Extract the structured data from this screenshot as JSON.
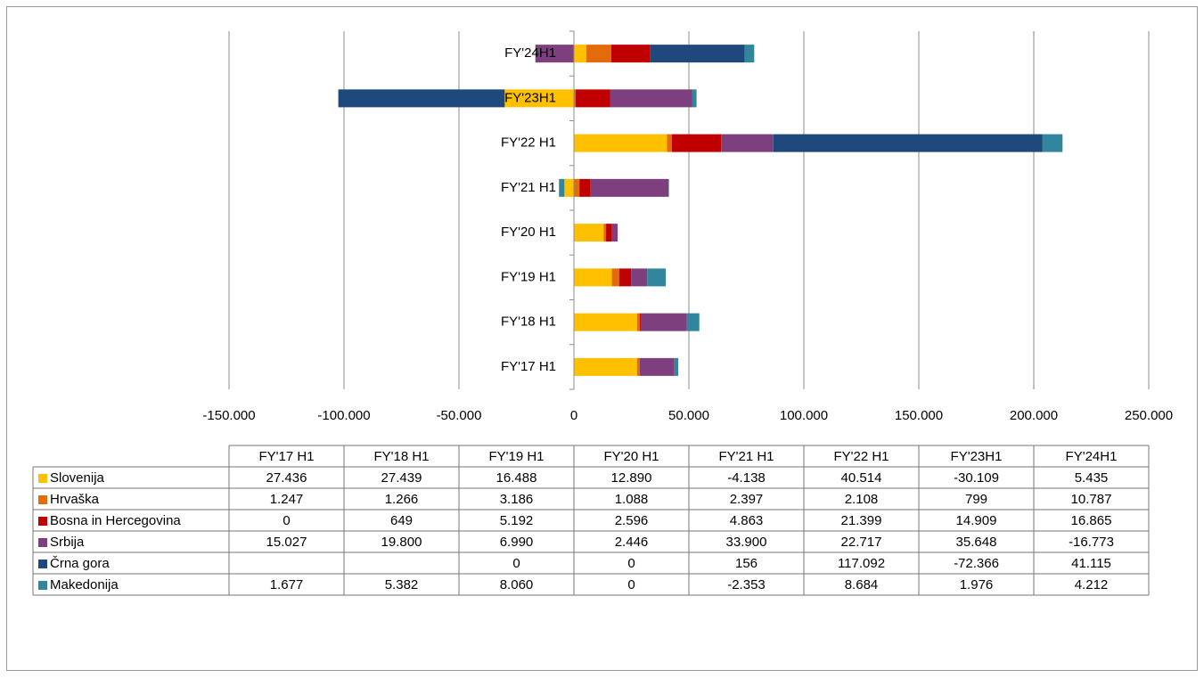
{
  "chart_data": {
    "type": "stacked-bar-horizontal",
    "categories": [
      "FY'17 H1",
      "FY'18 H1",
      "FY'19 H1",
      "FY'20 H1",
      "FY'21 H1",
      "FY'22 H1",
      "FY'23H1",
      "FY'24H1"
    ],
    "series": [
      {
        "name": "Slovenija",
        "color": "#FFC000",
        "values": [
          27436,
          27439,
          16488,
          12890,
          -4138,
          40514,
          -30109,
          5435
        ],
        "value_labels": [
          "27.436",
          "27.439",
          "16.488",
          "12.890",
          "-4.138",
          "40.514",
          "-30.109",
          "5.435"
        ]
      },
      {
        "name": "Hrvaška",
        "color": "#E36C0A",
        "values": [
          1247,
          1266,
          3186,
          1088,
          2397,
          2108,
          799,
          10787
        ],
        "value_labels": [
          "1.247",
          "1.266",
          "3.186",
          "1.088",
          "2.397",
          "2.108",
          "799",
          "10.787"
        ]
      },
      {
        "name": "Bosna in Hercegovina",
        "color": "#C00000",
        "values": [
          0,
          649,
          5192,
          2596,
          4863,
          21399,
          14909,
          16865
        ],
        "value_labels": [
          "0",
          "649",
          "5.192",
          "2.596",
          "4.863",
          "21.399",
          "14.909",
          "16.865"
        ]
      },
      {
        "name": "Srbija",
        "color": "#7E3F7E",
        "values": [
          15027,
          19800,
          6990,
          2446,
          33900,
          22717,
          35648,
          -16773
        ],
        "value_labels": [
          "15.027",
          "19.800",
          "6.990",
          "2.446",
          "33.900",
          "22.717",
          "35.648",
          "-16.773"
        ]
      },
      {
        "name": "Črna gora",
        "color": "#1F497D",
        "values": [
          null,
          null,
          0,
          0,
          156,
          117092,
          -72366,
          41115
        ],
        "value_labels": [
          null,
          null,
          "0",
          "0",
          "156",
          "117.092",
          "-72.366",
          "41.115"
        ]
      },
      {
        "name": "Makedonija",
        "color": "#31859C",
        "values": [
          1677,
          5382,
          8060,
          0,
          -2353,
          8684,
          1976,
          4212
        ],
        "value_labels": [
          "1.677",
          "5.382",
          "8.060",
          "0",
          "-2.353",
          "8.684",
          "1.976",
          "4.212"
        ]
      }
    ],
    "xlim": [
      -150000,
      250000
    ],
    "xticks": [
      {
        "value": -150000,
        "label": "-150.000"
      },
      {
        "value": -100000,
        "label": "-100.000"
      },
      {
        "value": -50000,
        "label": "-50.000"
      },
      0,
      {
        "value": 50000,
        "label": "50.000"
      },
      {
        "value": 100000,
        "label": "100.000"
      },
      {
        "value": 150000,
        "label": "150.000"
      },
      {
        "value": 200000,
        "label": "200.000"
      },
      {
        "value": 250000,
        "label": "250.000"
      }
    ],
    "grid": true
  }
}
